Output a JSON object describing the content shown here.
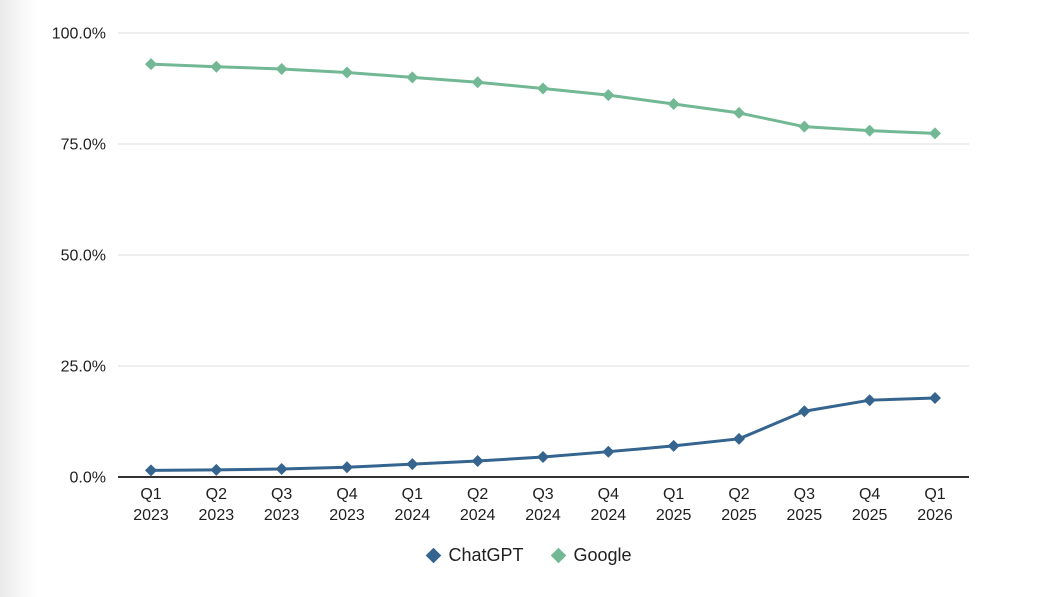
{
  "chart_data": {
    "type": "line",
    "title": "",
    "xlabel": "",
    "ylabel": "",
    "grid": true,
    "legend_position": "bottom",
    "marker": "diamond",
    "ylim": [
      0,
      100
    ],
    "yticks": [
      {
        "value": 0,
        "label": "0.0%"
      },
      {
        "value": 25,
        "label": "25.0%"
      },
      {
        "value": 50,
        "label": "50.0%"
      },
      {
        "value": 75,
        "label": "75.0%"
      },
      {
        "value": 100,
        "label": "100.0%"
      }
    ],
    "categories": [
      "Q1 2023",
      "Q2 2023",
      "Q3 2023",
      "Q4 2023",
      "Q1 2024",
      "Q2 2024",
      "Q3 2024",
      "Q4 2024",
      "Q1 2025",
      "Q2 2025",
      "Q3 2025",
      "Q4 2025",
      "Q1 2026"
    ],
    "series": [
      {
        "name": "ChatGPT",
        "color": "#35648f",
        "values": [
          1.5,
          1.6,
          1.8,
          2.2,
          2.9,
          3.6,
          4.5,
          5.7,
          7.0,
          8.6,
          14.8,
          17.3,
          17.8
        ]
      },
      {
        "name": "Google",
        "color": "#72b894",
        "values": [
          93.0,
          92.4,
          91.9,
          91.1,
          90.0,
          88.9,
          87.5,
          86.0,
          84.0,
          82.0,
          78.9,
          78.0,
          77.4
        ]
      }
    ],
    "colors": {
      "gridline": "#dcdcdc",
      "axis_line": "#333333",
      "tick_label": "#1f1f1f",
      "legend_text": "#212121"
    }
  }
}
